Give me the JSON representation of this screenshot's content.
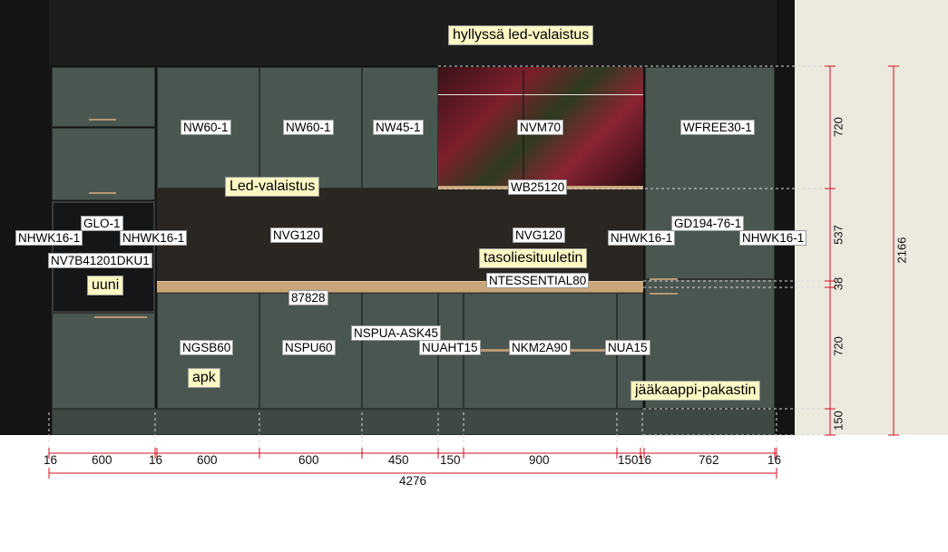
{
  "labels": {
    "shelf_led": "hyllyssä led-valaistus",
    "nw60_a": "NW60-1",
    "nw60_b": "NW60-1",
    "nw45": "NW45-1",
    "nvm70": "NVM70",
    "wfree": "WFREE30-1",
    "led": "Led-valaistus",
    "wb": "WB25120",
    "glo": "GLO-1",
    "gd": "GD194-76-1",
    "nhwk_1": "NHWK16-1",
    "nhwk_2": "NHWK16-1",
    "nvg_a": "NVG120",
    "nvg_b": "NVG120",
    "nhwk_3": "NHWK16-1",
    "nhwk_4": "NHWK16-1",
    "nv7": "NV7B41201DKU1",
    "hood": "tasoliesituuletin",
    "ntess": "NTESSENTIAL80",
    "oven": "uuni",
    "wt": "87828",
    "nspua": "NSPUA-ASK45",
    "ngsb": "NGSB60",
    "nspu": "NSPU60",
    "nuaht": "NUAHT15",
    "nkm": "NKM2A90",
    "nua": "NUA15",
    "apk": "apk",
    "fridge": "jääkaappi-pakastin"
  },
  "widths": {
    "w1": "16",
    "w2": "600",
    "w3": "16",
    "w4": "600",
    "w5": "600",
    "w6": "450",
    "w7": "150",
    "w8": "900",
    "w9": "150",
    "w10": "16",
    "w11": "762",
    "w12": "16",
    "total": "4276"
  },
  "heights": {
    "h1": "720",
    "h2": "537",
    "h3": "38",
    "h4": "720",
    "h5": "150",
    "total": "2166"
  },
  "colors": {
    "cabinet": "#4a5650",
    "countertop": "#c9a57a",
    "dimension_line": "#d01020",
    "tag_background": "#fff8c4"
  }
}
